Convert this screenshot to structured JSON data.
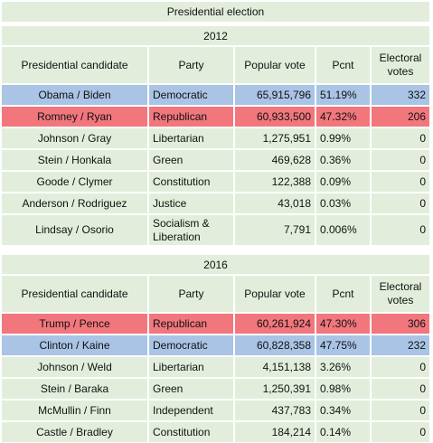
{
  "title": "Presidential election",
  "headers": {
    "candidate": "Presidential candidate",
    "party": "Party",
    "popular": "Popular vote",
    "pcnt": "Pcnt",
    "electoral": "Electoral votes"
  },
  "colors": {
    "row": "#e2eedb",
    "democratic": "#a9c4e5",
    "republican": "#f1777d"
  },
  "elections": [
    {
      "year": "2012",
      "rows": [
        {
          "candidate": "Obama / Biden",
          "party": "Democratic",
          "popular": "65,915,796",
          "pcnt": "51.19%",
          "electoral": "332",
          "color": "blue"
        },
        {
          "candidate": "Romney / Ryan",
          "party": "Republican",
          "popular": "60,933,500",
          "pcnt": "47.32%",
          "electoral": "206",
          "color": "red"
        },
        {
          "candidate": "Johnson / Gray",
          "party": "Libertarian",
          "popular": "1,275,951",
          "pcnt": "0.99%",
          "electoral": "0",
          "color": "green"
        },
        {
          "candidate": "Stein / Honkala",
          "party": "Green",
          "popular": "469,628",
          "pcnt": "0.36%",
          "electoral": "0",
          "color": "green"
        },
        {
          "candidate": "Goode / Clymer",
          "party": "Constitution",
          "popular": "122,388",
          "pcnt": "0.09%",
          "electoral": "0",
          "color": "green"
        },
        {
          "candidate": "Anderson / Rodriguez",
          "party": "Justice",
          "popular": "43,018",
          "pcnt": "0.03%",
          "electoral": "0",
          "color": "green"
        },
        {
          "candidate": "Lindsay / Osorio",
          "party": "Socialism & Liberation",
          "popular": "7,791",
          "pcnt": "0.006%",
          "electoral": "0",
          "color": "green"
        }
      ]
    },
    {
      "year": "2016",
      "rows": [
        {
          "candidate": "Trump / Pence",
          "party": "Republican",
          "popular": "60,261,924",
          "pcnt": "47.30%",
          "electoral": "306",
          "color": "red"
        },
        {
          "candidate": "Clinton / Kaine",
          "party": "Democratic",
          "popular": "60,828,358",
          "pcnt": "47.75%",
          "electoral": "232",
          "color": "blue"
        },
        {
          "candidate": "Johnson / Weld",
          "party": "Libertarian",
          "popular": "4,151,138",
          "pcnt": "3.26%",
          "electoral": "0",
          "color": "green"
        },
        {
          "candidate": "Stein / Baraka",
          "party": "Green",
          "popular": "1,250,391",
          "pcnt": "0.98%",
          "electoral": "0",
          "color": "green"
        },
        {
          "candidate": "McMullin / Finn",
          "party": "Independent",
          "popular": "437,783",
          "pcnt": "0.34%",
          "electoral": "0",
          "color": "green"
        },
        {
          "candidate": "Castle / Bradley",
          "party": "Constitution",
          "popular": "184,214",
          "pcnt": "0.14%",
          "electoral": "0",
          "color": "green"
        }
      ]
    }
  ]
}
